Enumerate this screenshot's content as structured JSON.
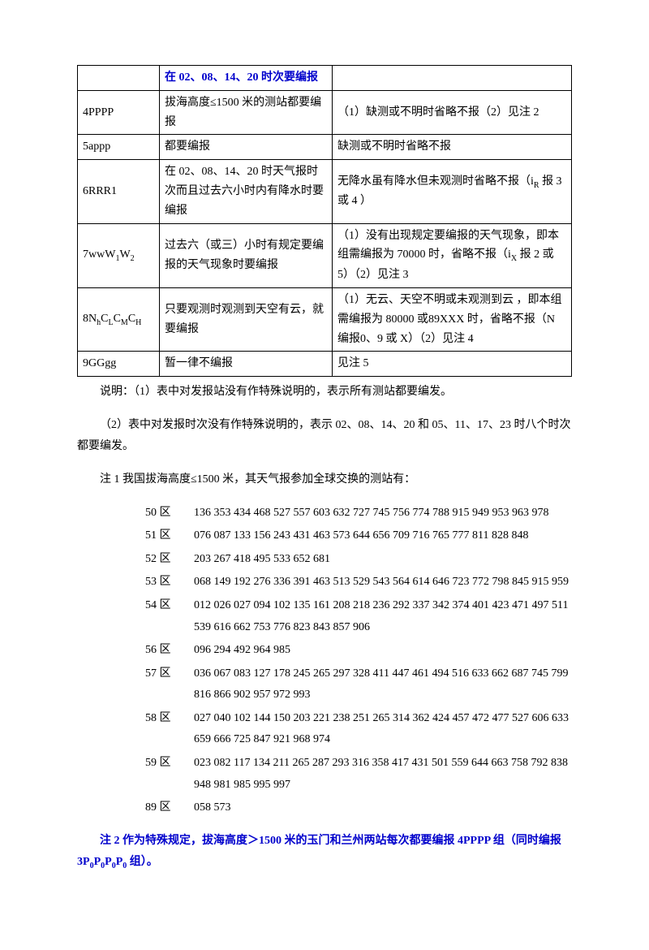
{
  "table": {
    "rows": [
      {
        "c1": "",
        "c2": "在 02、08、14、20 时次要编报",
        "c3": "",
        "c2_blue": true
      },
      {
        "c1": "4PPPP",
        "c2": "拔海高度≤1500 米的测站都要编报",
        "c3": "（1）缺测或不明时省略不报（2）见注 2"
      },
      {
        "c1": "5appp",
        "c2": "都要编报",
        "c3": "缺测或不明时省略不报"
      },
      {
        "c1": "6RRR1",
        "c2": "在 02、08、14、20 时天气报时次而且过去六小时内有降水时要编报",
        "c3": "无降水虽有降水但未观测时省略不报（iR 报 3 或 4 ）"
      },
      {
        "c1": "7wwW1W2",
        "c2": "过去六（或三）小时有规定要编报的天气现象时要编报",
        "c3": "（1）没有出现规定要编报的天气现象，即本组需编报为 70000 时，省略不报（iX 报 2 或 5）（2）见注 3"
      },
      {
        "c1": "8NhCLCMCH",
        "c2": "只要观测时观测到天空有云，就要编报",
        "c3": "（1）无云、天空不明或未观测到云 ，即本组需编报为 80000 或89XXX 时，省略不报（N 编报0、9 或 X）（2）见注 4"
      },
      {
        "c1": "9GGgg",
        "c2": "暂一律不编报",
        "c3": "见注 5"
      }
    ]
  },
  "explain1": "说明：（1）表中对发报站没有作特殊说明的，表示所有测站都要编发。",
  "explain2": "（2）表中对发报时次没有作特殊说明的，表示 02、08、14、20 和 05、11、17、23 时八个时次都要编发。",
  "note1": "注 1  我国拔海高度≤1500 米，其天气报参加全球交换的测站有：",
  "zones": [
    {
      "label": "50 区",
      "nums": "136 353 434 468 527 557 603 632 727 745 756 774 788 915 949 953 963 978"
    },
    {
      "label": "51 区",
      "nums": "076 087 133 156 243 431 463 573 644 656 709 716 765 777 811 828 848"
    },
    {
      "label": "52 区",
      "nums": "203 267 418 495 533 652 681"
    },
    {
      "label": "53 区",
      "nums": "068 149 192 276 336 391 463 513 529 543 564 614 646 723 772 798 845 915 959"
    },
    {
      "label": "54 区",
      "nums": "012 026 027 094 102 135 161 208 218 236 292 337 342 374 401 423 471 497 511 539 616 662 753 776 823 843 857 906"
    },
    {
      "label": "56 区",
      "nums": "096 294 492 964 985"
    },
    {
      "label": "57 区",
      "nums": "036 067 083 127 178 245 265 297 328 411 447 461 494 516 633 662 687 745 799 816 866 902 957 972 993"
    },
    {
      "label": "58 区",
      "nums": "027 040 102 144 150 203 221 238 251 265 314 362 424 457 472 477 527 606 633 659 666 725 847 921 968 974"
    },
    {
      "label": "59 区",
      "nums": "023 082 117 134 211 265 287 293 316 358 417 431 501 559 644 663 758 792 838 948 981 985 995 997"
    },
    {
      "label": "89 区",
      "nums": "058 573"
    }
  ],
  "note2": "注 2  作为特殊规定，拔海高度＞1500 米的玉门和兰州两站每次都要编报 4PPPP 组（同时编报 3P0P0P0P0 组）。"
}
